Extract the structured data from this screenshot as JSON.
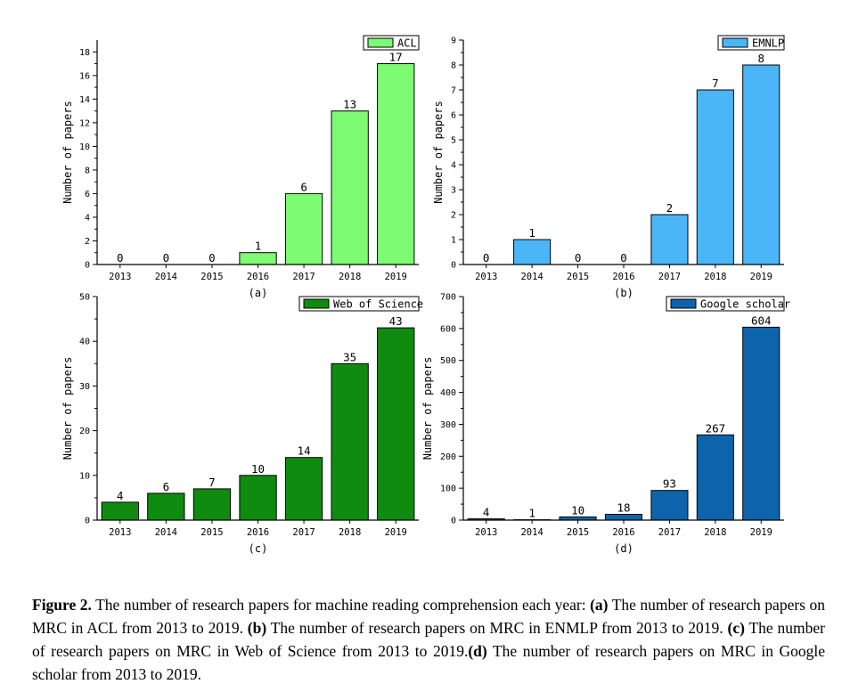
{
  "chart_data": [
    {
      "type": "bar",
      "panel_label": "(a)",
      "ylabel": "Number of papers",
      "categories": [
        "2013",
        "2014",
        "2015",
        "2016",
        "2017",
        "2018",
        "2019"
      ],
      "series": [
        {
          "name": "ACL",
          "values": [
            0,
            0,
            0,
            1,
            6,
            13,
            17
          ]
        }
      ],
      "ylim": [
        0,
        19
      ],
      "yticks": [
        0,
        2,
        4,
        6,
        8,
        10,
        12,
        14,
        16,
        18
      ],
      "color": "#7dfc73",
      "legend": "top-right",
      "grid": false
    },
    {
      "type": "bar",
      "panel_label": "(b)",
      "ylabel": "Number of papers",
      "categories": [
        "2013",
        "2014",
        "2015",
        "2016",
        "2017",
        "2018",
        "2019"
      ],
      "series": [
        {
          "name": "EMNLP",
          "values": [
            0,
            1,
            0,
            0,
            2,
            7,
            8
          ]
        }
      ],
      "ylim": [
        0,
        9
      ],
      "yticks": [
        0,
        1,
        2,
        3,
        4,
        5,
        6,
        7,
        8,
        9
      ],
      "color": "#4ab6f7",
      "legend": "top-right",
      "grid": false
    },
    {
      "type": "bar",
      "panel_label": "(c)",
      "ylabel": "Number of papers",
      "categories": [
        "2013",
        "2014",
        "2015",
        "2016",
        "2017",
        "2018",
        "2019"
      ],
      "series": [
        {
          "name": "Web of Science",
          "values": [
            4,
            6,
            7,
            10,
            14,
            35,
            43
          ]
        }
      ],
      "ylim": [
        0,
        50
      ],
      "yticks": [
        0,
        10,
        20,
        30,
        40,
        50
      ],
      "color": "#0f8c0f",
      "legend": "top-right",
      "grid": false
    },
    {
      "type": "bar",
      "panel_label": "(d)",
      "ylabel": "Number of papers",
      "categories": [
        "2013",
        "2014",
        "2015",
        "2016",
        "2017",
        "2018",
        "2019"
      ],
      "series": [
        {
          "name": "Google scholar",
          "values": [
            4,
            1,
            10,
            18,
            93,
            267,
            604
          ]
        }
      ],
      "ylim": [
        0,
        700
      ],
      "yticks": [
        0,
        100,
        200,
        300,
        400,
        500,
        600,
        700
      ],
      "color": "#0d64ab",
      "legend": "top-right",
      "grid": false
    }
  ],
  "caption": {
    "figure_label": "Figure 2.",
    "text_1": " The number of research papers for machine reading comprehension each year: ",
    "a_label": "(a)",
    "text_2": " The number of research papers on MRC in ACL from 2013 to 2019. ",
    "b_label": "(b)",
    "text_3": " The number of research papers on MRC in ENMLP from 2013 to 2019. ",
    "c_label": "(c)",
    "text_4": " The number of research papers on MRC in Web of Science from 2013 to 2019.",
    "d_label": "(d)",
    "text_5": " The number of research papers on MRC in Google scholar from 2013 to 2019."
  }
}
